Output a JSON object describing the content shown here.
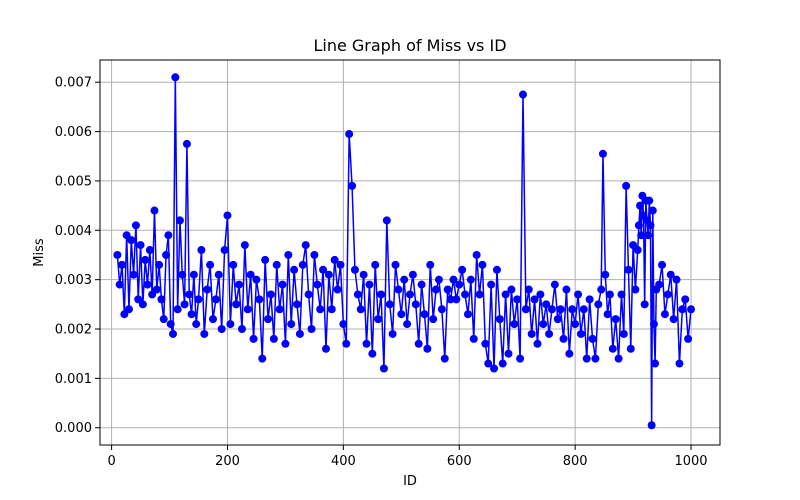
{
  "chart_data": {
    "type": "line",
    "title": "Line Graph of Miss vs ID",
    "xlabel": "ID",
    "ylabel": "Miss",
    "xlim": [
      -20,
      1050
    ],
    "ylim": [
      -0.00035,
      0.00745
    ],
    "xticks": [
      0,
      200,
      400,
      600,
      800,
      1000
    ],
    "xtick_labels": [
      "0",
      "200",
      "400",
      "600",
      "800",
      "1000"
    ],
    "yticks": [
      0.0,
      0.001,
      0.002,
      0.003,
      0.004,
      0.005,
      0.006,
      0.007
    ],
    "ytick_labels": [
      "0.000",
      "0.001",
      "0.002",
      "0.003",
      "0.004",
      "0.005",
      "0.006",
      "0.007"
    ],
    "grid": true,
    "marker": "circle",
    "colors": {
      "series": "#0000ff",
      "grid": "#b0b0b0",
      "axis": "#000000"
    },
    "series": [
      {
        "x": [
          10,
          14,
          18,
          22,
          26,
          30,
          34,
          38,
          42,
          46,
          50,
          54,
          58,
          62,
          66,
          70,
          74,
          78,
          82,
          86,
          90,
          94,
          98,
          102,
          106,
          110,
          114,
          118,
          122,
          126,
          130,
          134,
          138,
          142,
          146,
          150,
          155,
          160,
          165,
          170,
          175,
          180,
          185,
          190,
          195,
          200,
          205,
          210,
          215,
          220,
          225,
          230,
          235,
          240,
          245,
          250,
          255,
          260,
          265,
          270,
          275,
          280,
          285,
          290,
          295,
          300,
          305,
          310,
          315,
          320,
          325,
          330,
          335,
          340,
          345,
          350,
          355,
          360,
          365,
          370,
          375,
          380,
          385,
          390,
          395,
          400,
          405,
          410,
          415,
          420,
          425,
          430,
          435,
          440,
          445,
          450,
          455,
          460,
          465,
          470,
          475,
          480,
          485,
          490,
          495,
          500,
          505,
          510,
          515,
          520,
          525,
          530,
          535,
          540,
          545,
          550,
          555,
          560,
          565,
          570,
          575,
          580,
          585,
          590,
          595,
          600,
          605,
          610,
          615,
          620,
          625,
          630,
          635,
          640,
          645,
          650,
          655,
          660,
          665,
          670,
          675,
          680,
          685,
          690,
          695,
          700,
          705,
          710,
          715,
          720,
          725,
          730,
          735,
          740,
          745,
          750,
          755,
          760,
          765,
          770,
          775,
          780,
          785,
          790,
          795,
          800,
          805,
          810,
          815,
          820,
          825,
          830,
          835,
          840,
          845,
          848,
          852,
          856,
          860,
          865,
          870,
          875,
          880,
          884,
          888,
          892,
          896,
          900,
          904,
          908,
          910,
          912,
          914,
          916,
          918,
          920,
          922,
          924,
          926,
          928,
          930,
          932,
          934,
          936,
          938,
          940,
          945,
          950,
          955,
          960,
          965,
          970,
          975,
          980,
          985,
          990,
          995,
          1000
        ],
        "values": [
          0.0035,
          0.0029,
          0.0033,
          0.0023,
          0.0039,
          0.0024,
          0.0038,
          0.0031,
          0.0041,
          0.0026,
          0.0037,
          0.0025,
          0.0034,
          0.0029,
          0.0036,
          0.0027,
          0.0044,
          0.0028,
          0.0033,
          0.0026,
          0.0022,
          0.0035,
          0.0039,
          0.0021,
          0.0019,
          0.0071,
          0.0024,
          0.0042,
          0.0031,
          0.0025,
          0.00575,
          0.0027,
          0.0023,
          0.0031,
          0.0021,
          0.0026,
          0.0036,
          0.0019,
          0.0028,
          0.0033,
          0.0022,
          0.0026,
          0.0031,
          0.002,
          0.0036,
          0.0043,
          0.0021,
          0.0033,
          0.0025,
          0.0029,
          0.002,
          0.0037,
          0.0024,
          0.0031,
          0.0018,
          0.003,
          0.0026,
          0.0014,
          0.0034,
          0.0022,
          0.0027,
          0.0018,
          0.0033,
          0.0024,
          0.0029,
          0.0017,
          0.0035,
          0.0021,
          0.0032,
          0.0025,
          0.0019,
          0.0033,
          0.0037,
          0.0027,
          0.002,
          0.0035,
          0.0029,
          0.0024,
          0.0032,
          0.0016,
          0.0031,
          0.0024,
          0.0034,
          0.0028,
          0.0033,
          0.0021,
          0.0017,
          0.00595,
          0.0049,
          0.0032,
          0.0027,
          0.0024,
          0.0031,
          0.0017,
          0.0029,
          0.0015,
          0.0033,
          0.0022,
          0.0027,
          0.0012,
          0.0042,
          0.0025,
          0.0019,
          0.0033,
          0.0028,
          0.0023,
          0.003,
          0.0021,
          0.0027,
          0.0031,
          0.0025,
          0.0017,
          0.0029,
          0.0023,
          0.0016,
          0.0033,
          0.0022,
          0.0028,
          0.003,
          0.0024,
          0.0014,
          0.0028,
          0.0026,
          0.003,
          0.0026,
          0.0029,
          0.0032,
          0.0027,
          0.0023,
          0.003,
          0.0018,
          0.0035,
          0.0027,
          0.0033,
          0.0017,
          0.0013,
          0.0029,
          0.0012,
          0.0032,
          0.0022,
          0.0013,
          0.0027,
          0.0015,
          0.0028,
          0.0021,
          0.0026,
          0.0014,
          0.00675,
          0.0024,
          0.0028,
          0.0019,
          0.0026,
          0.0017,
          0.0027,
          0.0021,
          0.0025,
          0.0019,
          0.0024,
          0.0029,
          0.0022,
          0.0024,
          0.0018,
          0.0028,
          0.0015,
          0.0024,
          0.0021,
          0.0027,
          0.0019,
          0.0024,
          0.0014,
          0.0026,
          0.0018,
          0.0014,
          0.0025,
          0.0028,
          0.00555,
          0.0031,
          0.0023,
          0.0027,
          0.0016,
          0.0022,
          0.0014,
          0.0027,
          0.0019,
          0.0049,
          0.0032,
          0.0016,
          0.0037,
          0.0028,
          0.0036,
          0.0041,
          0.0045,
          0.0039,
          0.0047,
          0.0043,
          0.0025,
          0.0046,
          0.0042,
          0.0039,
          0.0046,
          0.0041,
          5e-05,
          0.0044,
          0.0021,
          0.0013,
          0.0028,
          0.0029,
          0.0033,
          0.0023,
          0.0027,
          0.0031,
          0.0022,
          0.003,
          0.0013,
          0.0024,
          0.0026,
          0.0018,
          0.0024
        ]
      }
    ]
  }
}
